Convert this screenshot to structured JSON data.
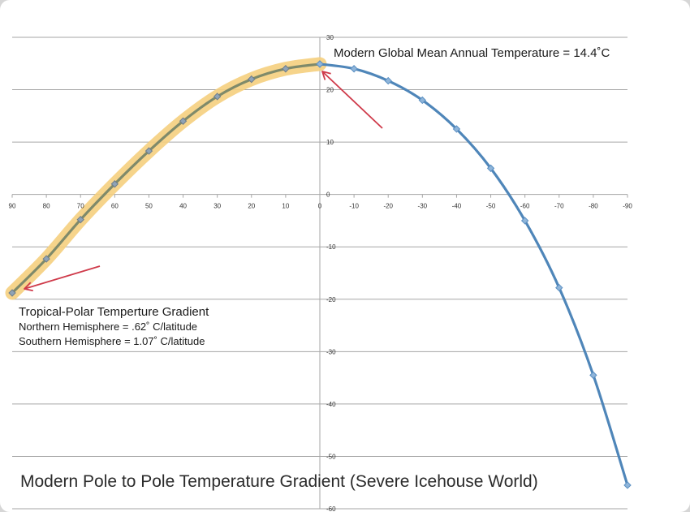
{
  "chart_data": {
    "type": "line",
    "title": "Modern Pole to Pole Temperature Gradient  (Severe Icehouse World)",
    "xlabel": "",
    "ylabel": "",
    "x_ticks": [
      "90",
      "80",
      "70",
      "60",
      "50",
      "40",
      "30",
      "20",
      "10",
      "0",
      "-10",
      "-20",
      "-30",
      "-40",
      "-50",
      "-60",
      "-70",
      "-80",
      "-90"
    ],
    "xlim": [
      90,
      -90
    ],
    "y_ticks": [
      "30",
      "20",
      "10",
      "0",
      "-10",
      "-20",
      "-30",
      "-40",
      "-50",
      "-60"
    ],
    "ylim": [
      -60,
      30
    ],
    "grid": true,
    "series": [
      {
        "name": "Northern Hemisphere",
        "color": "#7f8a6a",
        "highlight_color": "#f5cf7e",
        "x": [
          90,
          80,
          70,
          60,
          50,
          40,
          30,
          20,
          10,
          0
        ],
        "y": [
          -18.8,
          -12.3,
          -4.8,
          2.0,
          8.3,
          14.0,
          18.7,
          22.0,
          24.0,
          24.9
        ]
      },
      {
        "name": "Southern Hemisphere",
        "color": "#4f86b9",
        "x": [
          0,
          -10,
          -20,
          -30,
          -40,
          -50,
          -60,
          -70,
          -80,
          -90
        ],
        "y": [
          24.9,
          24.0,
          21.7,
          18.0,
          12.5,
          5.0,
          -5.0,
          -17.8,
          -34.5,
          -55.5
        ]
      }
    ],
    "annotations": {
      "top": "Modern Global Mean Annual Temperature = 14.4˚C",
      "gradient_title": "Tropical-Polar Temperture Gradient",
      "gradient_nh": "Northern Hemisphere = .62˚ C/latitude",
      "gradient_sh": "Southern Hemisphere = 1.07˚ C/latitude"
    },
    "arrow_color": "#cf3a4a",
    "grid_color": "#a6a6a6"
  }
}
